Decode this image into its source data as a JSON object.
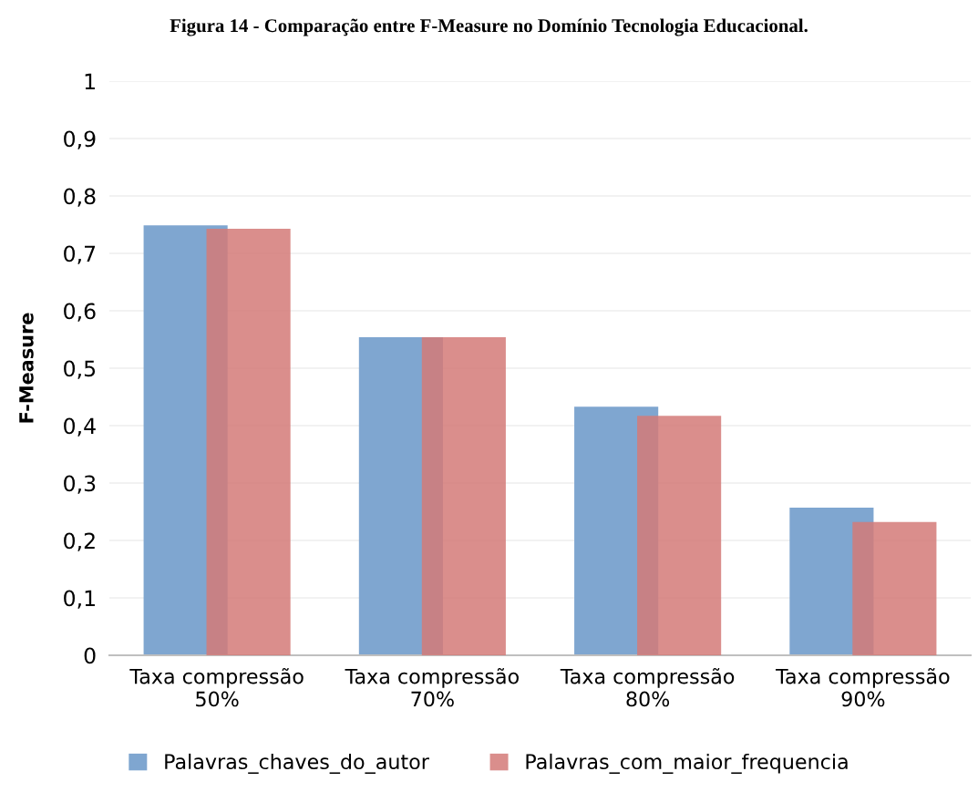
{
  "chart_data": {
    "type": "bar",
    "title": "Figura 14 - Comparação entre F-Measure no Domínio Tecnologia Educacional.",
    "ylabel": "F-Measure",
    "categories": [
      "Taxa compressão\n50%",
      "Taxa compressão\n70%",
      "Taxa compressão\n80%",
      "Taxa compressão\n90%"
    ],
    "series": [
      {
        "name": "Palavras_chaves_do_autor",
        "color": "#7fa6d0",
        "values": [
          0.749,
          0.554,
          0.433,
          0.257
        ]
      },
      {
        "name": "Palavras_com_maior_frequencia",
        "color": "#d47a78",
        "values": [
          0.743,
          0.554,
          0.417,
          0.232
        ]
      }
    ],
    "ylim": [
      0,
      1
    ],
    "yticks": [
      {
        "value": 0,
        "label": "0"
      },
      {
        "value": 0.1,
        "label": "0,1"
      },
      {
        "value": 0.2,
        "label": "0,2"
      },
      {
        "value": 0.3,
        "label": "0,3"
      },
      {
        "value": 0.4,
        "label": "0,4"
      },
      {
        "value": 0.5,
        "label": "0,5"
      },
      {
        "value": 0.6,
        "label": "0,6"
      },
      {
        "value": 0.7,
        "label": "0,7"
      },
      {
        "value": 0.8,
        "label": "0,8"
      },
      {
        "value": 0.9,
        "label": "0,9"
      },
      {
        "value": 1,
        "label": "1"
      }
    ],
    "grid": "y",
    "legend": "bottom"
  }
}
